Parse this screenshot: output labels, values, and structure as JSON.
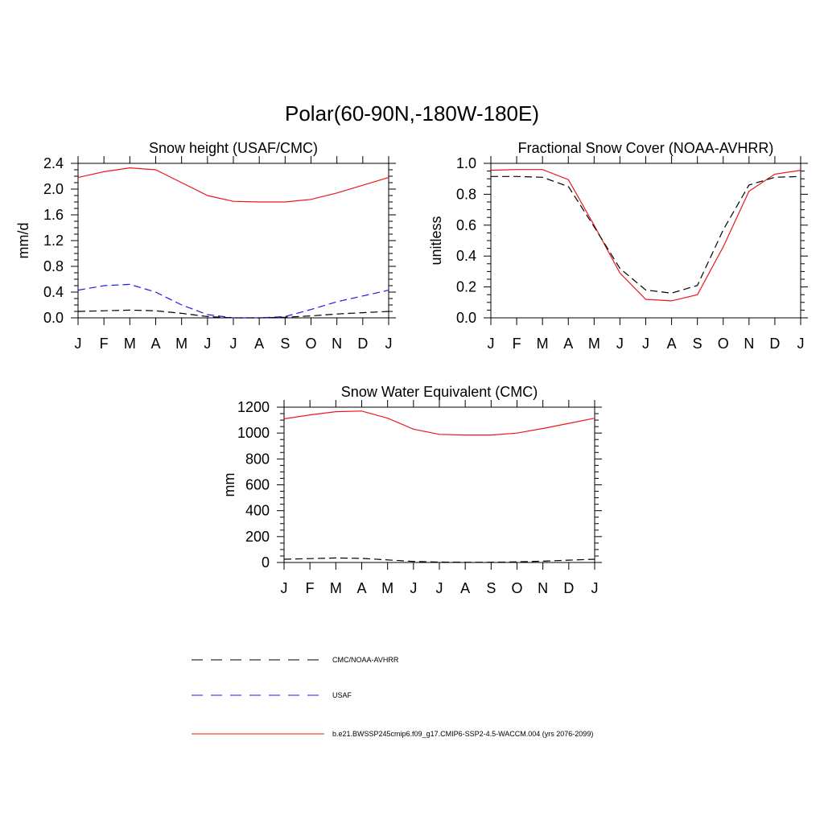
{
  "page_title": "Polar(60-90N,-180W-180E)",
  "month_labels": [
    "J",
    "F",
    "M",
    "A",
    "M",
    "J",
    "J",
    "A",
    "S",
    "O",
    "N",
    "D",
    "J"
  ],
  "colors": {
    "model": "#e8181e",
    "usaf": "#1a1ae6",
    "obs": "#000000"
  },
  "chart_data": [
    {
      "type": "line",
      "title": "Snow height (USAF/CMC)",
      "ylabel": "mm/d",
      "ylim": [
        0,
        2.4
      ],
      "yticks": [
        "0.0",
        "0.4",
        "0.8",
        "1.2",
        "1.6",
        "2.0",
        "2.4"
      ],
      "ytick_values": [
        0,
        0.4,
        0.8,
        1.2,
        1.6,
        2.0,
        2.4
      ],
      "series": [
        {
          "name": "b.e21.BWSSP245cmip6.f09_g17.CMIP6-SSP2-4.5-WACCM.004 (yrs 2076-2099)",
          "style": "model",
          "values": [
            2.18,
            2.27,
            2.33,
            2.3,
            2.1,
            1.9,
            1.81,
            1.8,
            1.8,
            1.84,
            1.94,
            2.06,
            2.18
          ]
        },
        {
          "name": "USAF",
          "style": "usaf",
          "values": [
            0.43,
            0.5,
            0.52,
            0.4,
            0.2,
            0.05,
            0.0,
            0.0,
            0.02,
            0.13,
            0.25,
            0.34,
            0.43
          ]
        },
        {
          "name": "CMC/NOAA-AVHRR",
          "style": "obs",
          "values": [
            0.1,
            0.11,
            0.12,
            0.11,
            0.07,
            0.02,
            0.0,
            0.0,
            0.01,
            0.03,
            0.06,
            0.08,
            0.1
          ]
        }
      ]
    },
    {
      "type": "line",
      "title": "Fractional Snow Cover (NOAA-AVHRR)",
      "ylabel": "unitless",
      "ylim": [
        0,
        1.0
      ],
      "yticks": [
        "0.0",
        "0.2",
        "0.4",
        "0.6",
        "0.8",
        "1.0"
      ],
      "ytick_values": [
        0,
        0.2,
        0.4,
        0.6,
        0.8,
        1.0
      ],
      "series": [
        {
          "name": "b.e21.BWSSP245cmip6.f09_g17.CMIP6-SSP2-4.5-WACCM.004 (yrs 2076-2099)",
          "style": "model",
          "values": [
            0.955,
            0.96,
            0.96,
            0.895,
            0.6,
            0.29,
            0.12,
            0.11,
            0.15,
            0.46,
            0.82,
            0.93,
            0.955
          ]
        },
        {
          "name": "CMC/NOAA-AVHRR",
          "style": "obs",
          "values": [
            0.915,
            0.915,
            0.91,
            0.85,
            0.59,
            0.32,
            0.18,
            0.16,
            0.21,
            0.57,
            0.86,
            0.91,
            0.915
          ]
        }
      ]
    },
    {
      "type": "line",
      "title": "Snow Water Equivalent (CMC)",
      "ylabel": "mm",
      "ylim": [
        0,
        1200
      ],
      "yticks": [
        "0",
        "200",
        "400",
        "600",
        "800",
        "1000",
        "1200"
      ],
      "ytick_values": [
        0,
        200,
        400,
        600,
        800,
        1000,
        1200
      ],
      "series": [
        {
          "name": "b.e21.BWSSP245cmip6.f09_g17.CMIP6-SSP2-4.5-WACCM.004 (yrs 2076-2099)",
          "style": "model",
          "values": [
            1110,
            1140,
            1165,
            1170,
            1115,
            1030,
            990,
            985,
            985,
            1000,
            1035,
            1075,
            1115
          ]
        },
        {
          "name": "CMC/NOAA-AVHRR",
          "style": "obs",
          "values": [
            25,
            30,
            35,
            32,
            20,
            8,
            3,
            2,
            2,
            5,
            10,
            18,
            25
          ]
        }
      ]
    }
  ],
  "legend": [
    {
      "label": "CMC/NOAA-AVHRR",
      "style": "obs"
    },
    {
      "label": "USAF",
      "style": "usaf"
    },
    {
      "label": "b.e21.BWSSP245cmip6.f09_g17.CMIP6-SSP2-4.5-WACCM.004 (yrs 2076-2099)",
      "style": "model"
    }
  ]
}
